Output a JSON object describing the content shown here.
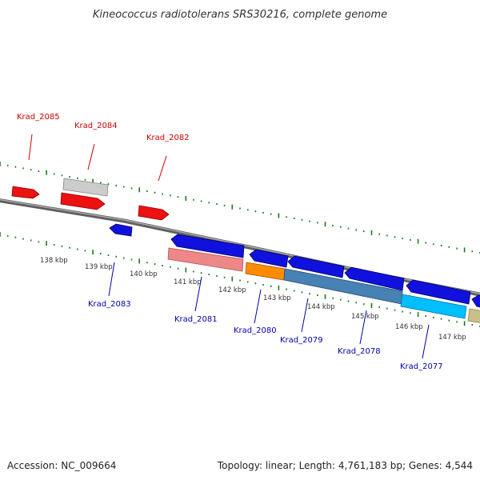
{
  "title": "Kineococcus radiotolerans SRS30216, complete genome",
  "footer": {
    "accession": "Accession: NC_009664",
    "summary": "Topology: linear; Length: 4,761,183 bp; Genes: 4,544"
  },
  "colors": {
    "forward_label": "#cc0000",
    "reverse_label": "#0000aa",
    "backbone": "#777777",
    "ticks": "#1a7a1a"
  },
  "kbp_labels": [
    "138 kbp",
    "139 kbp",
    "140 kbp",
    "141 kbp",
    "142 kbp",
    "143 kbp",
    "144 kbp",
    "145 kbp",
    "146 kbp",
    "147 kbp"
  ],
  "gene_labels": {
    "krad_2085": "Krad_2085",
    "krad_2084": "Krad_2084",
    "krad_2082": "Krad_2082",
    "krad_2083": "Krad_2083",
    "krad_2081": "Krad_2081",
    "krad_2080": "Krad_2080",
    "krad_2079": "Krad_2079",
    "krad_2078": "Krad_2078",
    "krad_2077": "Krad_2077"
  }
}
